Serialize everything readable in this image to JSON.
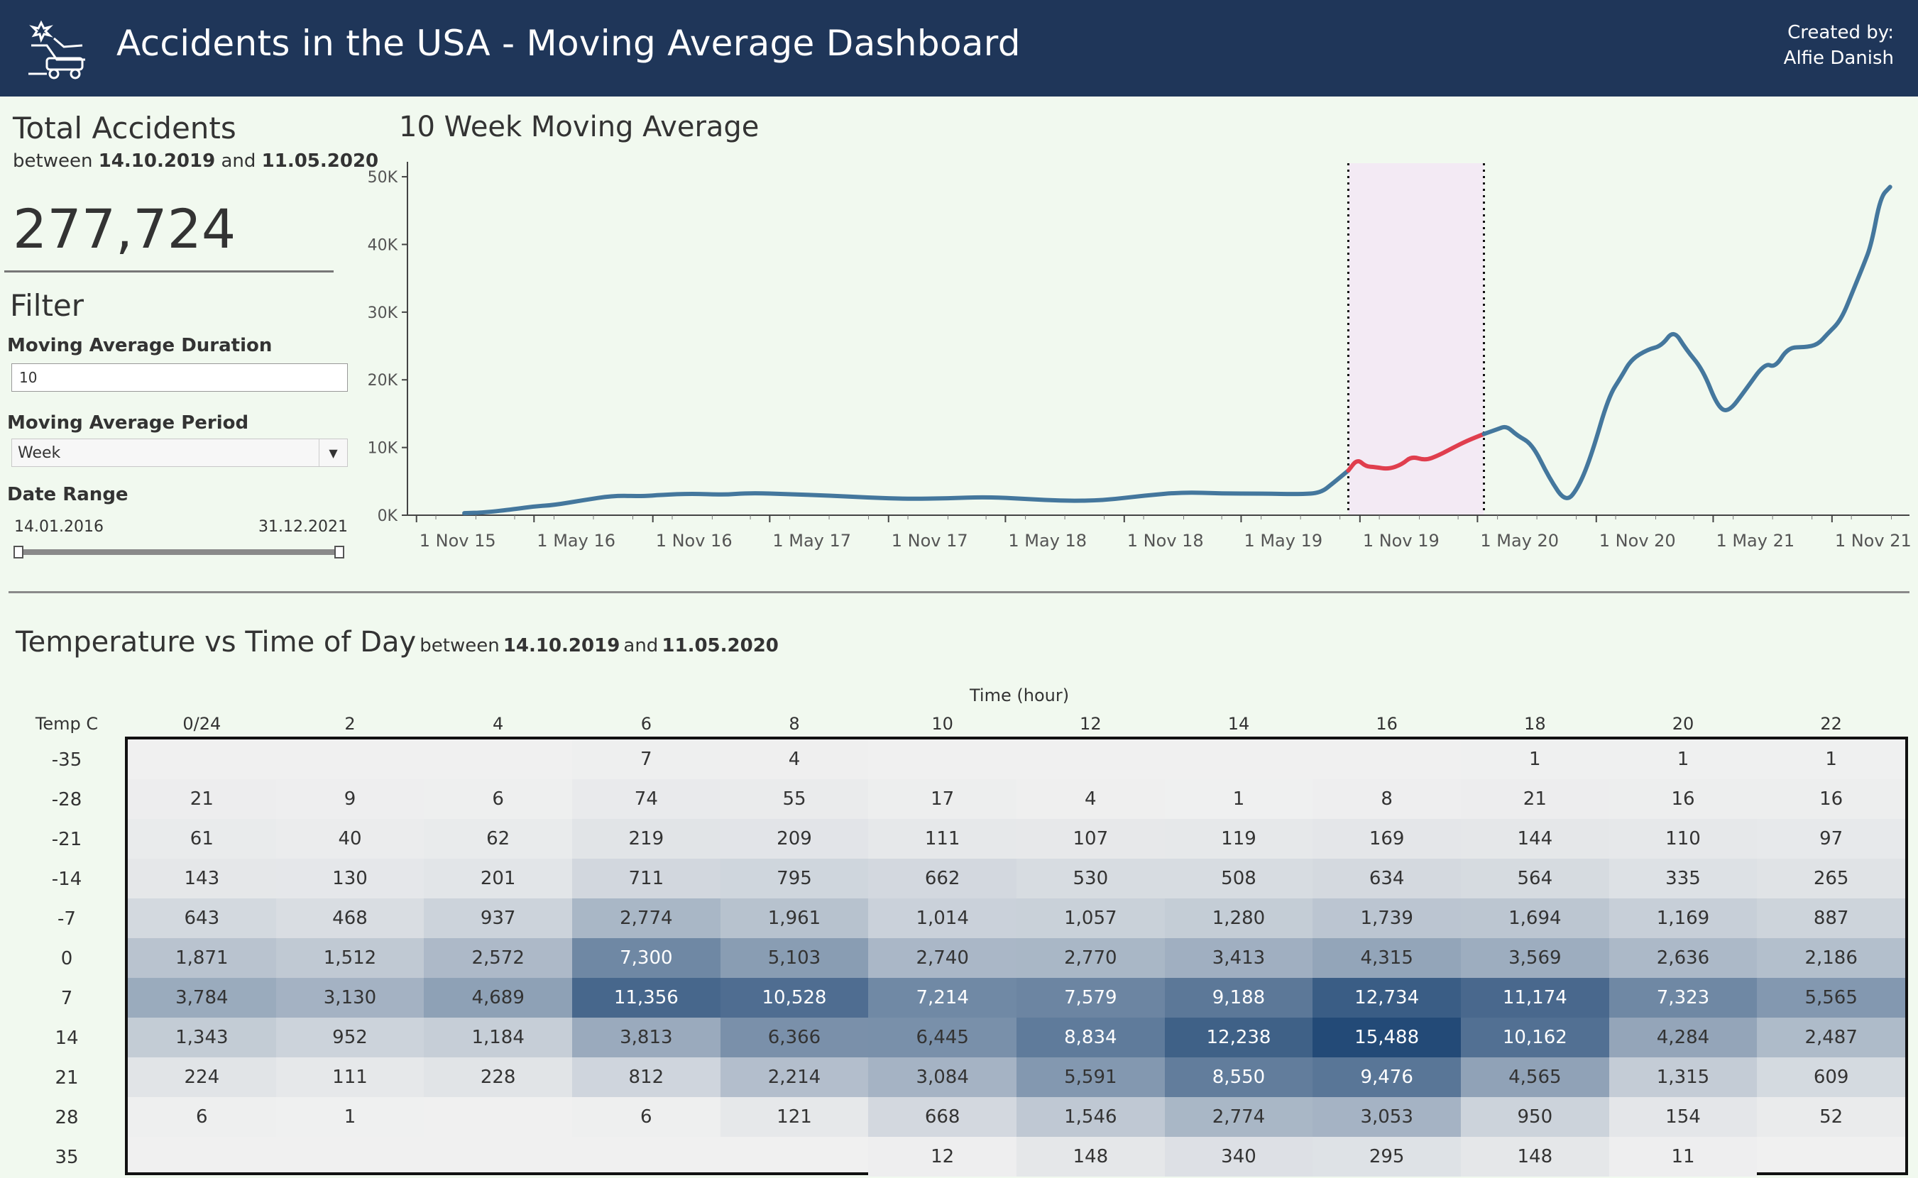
{
  "header": {
    "title": "Accidents in the USA - Moving Average Dashboard",
    "credit_line1": "Created by:",
    "credit_line2": "Alfie Danish",
    "background": "#1f3659"
  },
  "kpi": {
    "title": "Total Accidents",
    "between_word": "between",
    "start": "14.10.2019",
    "and_word": "and",
    "end": "11.05.2020",
    "value": "277,724"
  },
  "filter": {
    "title": "Filter",
    "duration_label": "Moving Average Duration",
    "duration_value": "10",
    "period_label": "Moving Average Period",
    "period_value": "Week",
    "range_label": "Date Range",
    "range_start": "14.01.2016",
    "range_end": "31.12.2021"
  },
  "chart_data": {
    "type": "line",
    "title": "10 Week Moving Average",
    "y_ticks": [
      "0K",
      "10K",
      "20K",
      "30K",
      "40K",
      "50K"
    ],
    "ylim": [
      0,
      52000
    ],
    "x_ticks": [
      {
        "label": "1 Nov 15",
        "date": "2015-11-01"
      },
      {
        "label": "1 May 16",
        "date": "2016-05-01"
      },
      {
        "label": "1 Nov 16",
        "date": "2016-11-01"
      },
      {
        "label": "1 May 17",
        "date": "2017-05-01"
      },
      {
        "label": "1 Nov 17",
        "date": "2017-11-01"
      },
      {
        "label": "1 May 18",
        "date": "2018-05-01"
      },
      {
        "label": "1 Nov 18",
        "date": "2018-11-01"
      },
      {
        "label": "1 May 19",
        "date": "2019-05-01"
      },
      {
        "label": "1 Nov 19",
        "date": "2019-11-01"
      },
      {
        "label": "1 May 20",
        "date": "2020-05-01"
      },
      {
        "label": "1 Nov 20",
        "date": "2020-11-01"
      },
      {
        "label": "1 May 21",
        "date": "2021-05-01"
      },
      {
        "label": "1 Nov 21",
        "date": "2021-11-01"
      }
    ],
    "xlim": [
      "2015-10-18",
      "2022-03-01"
    ],
    "highlight": {
      "start": "2019-10-14",
      "end": "2020-05-11",
      "color": "#f3eaf4"
    },
    "series": [
      {
        "color": "#44779d",
        "points": [
          [
            "2016-01-14",
            300
          ],
          [
            "2016-02-14",
            400
          ],
          [
            "2016-04-01",
            900
          ],
          [
            "2016-05-01",
            1300
          ],
          [
            "2016-06-01",
            1500
          ],
          [
            "2016-07-15",
            2200
          ],
          [
            "2016-09-01",
            2900
          ],
          [
            "2016-10-15",
            2800
          ],
          [
            "2016-11-15",
            3000
          ],
          [
            "2017-01-01",
            3200
          ],
          [
            "2017-02-15",
            3000
          ],
          [
            "2017-04-01",
            3300
          ],
          [
            "2017-06-01",
            3100
          ],
          [
            "2017-08-01",
            2900
          ],
          [
            "2017-10-01",
            2600
          ],
          [
            "2017-12-01",
            2400
          ],
          [
            "2018-02-01",
            2500
          ],
          [
            "2018-04-01",
            2700
          ],
          [
            "2018-06-01",
            2400
          ],
          [
            "2018-08-01",
            2100
          ],
          [
            "2018-10-01",
            2200
          ],
          [
            "2018-12-01",
            2900
          ],
          [
            "2019-02-01",
            3400
          ],
          [
            "2019-04-01",
            3200
          ],
          [
            "2019-06-01",
            3200
          ],
          [
            "2019-08-01",
            3100
          ],
          [
            "2019-09-01",
            3300
          ],
          [
            "2019-09-20",
            4700
          ],
          [
            "2019-10-14",
            6600
          ]
        ]
      },
      {
        "color": "#e03e4e",
        "points": [
          [
            "2019-10-14",
            6600
          ],
          [
            "2019-10-28",
            8300
          ],
          [
            "2019-11-10",
            7200
          ],
          [
            "2019-11-25",
            7100
          ],
          [
            "2019-12-15",
            6800
          ],
          [
            "2020-01-05",
            7500
          ],
          [
            "2020-01-20",
            8700
          ],
          [
            "2020-02-10",
            8100
          ],
          [
            "2020-03-01",
            8800
          ],
          [
            "2020-03-25",
            10000
          ],
          [
            "2020-04-15",
            11000
          ],
          [
            "2020-05-11",
            12000
          ]
        ]
      },
      {
        "color": "#44779d",
        "points": [
          [
            "2020-05-11",
            12000
          ],
          [
            "2020-06-01",
            12700
          ],
          [
            "2020-06-15",
            13200
          ],
          [
            "2020-07-01",
            11800
          ],
          [
            "2020-07-25",
            10500
          ],
          [
            "2020-08-20",
            5500
          ],
          [
            "2020-09-15",
            1800
          ],
          [
            "2020-10-05",
            4200
          ],
          [
            "2020-10-25",
            9000
          ],
          [
            "2020-11-20",
            17500
          ],
          [
            "2020-12-10",
            20500
          ],
          [
            "2020-12-25",
            23000
          ],
          [
            "2021-01-20",
            24500
          ],
          [
            "2021-02-10",
            25000
          ],
          [
            "2021-03-01",
            27400
          ],
          [
            "2021-03-20",
            24500
          ],
          [
            "2021-04-15",
            21500
          ],
          [
            "2021-05-08",
            16000
          ],
          [
            "2021-05-25",
            15200
          ],
          [
            "2021-06-20",
            18500
          ],
          [
            "2021-07-20",
            22500
          ],
          [
            "2021-08-05",
            21800
          ],
          [
            "2021-08-25",
            24800
          ],
          [
            "2021-09-20",
            24800
          ],
          [
            "2021-10-10",
            25200
          ],
          [
            "2021-10-25",
            26800
          ],
          [
            "2021-11-15",
            28800
          ],
          [
            "2021-12-05",
            33500
          ],
          [
            "2021-12-20",
            37000
          ],
          [
            "2022-01-01",
            40000
          ],
          [
            "2022-01-15",
            47000
          ],
          [
            "2022-01-30",
            48500
          ]
        ]
      }
    ]
  },
  "heatmap": {
    "title": "Temperature vs Time of Day",
    "between_word": "between",
    "start": "14.10.2019",
    "and_word": "and",
    "end": "11.05.2020",
    "x_title": "Time (hour)",
    "row_header": "Temp C",
    "columns": [
      "0/24",
      "2",
      "4",
      "6",
      "8",
      "10",
      "12",
      "14",
      "16",
      "18",
      "20",
      "22"
    ],
    "rows": [
      {
        "label": "-35",
        "values": [
          null,
          null,
          null,
          7,
          4,
          null,
          null,
          null,
          null,
          1,
          1,
          1
        ]
      },
      {
        "label": "-28",
        "values": [
          21,
          9,
          6,
          74,
          55,
          17,
          4,
          1,
          8,
          21,
          16,
          16
        ]
      },
      {
        "label": "-21",
        "values": [
          61,
          40,
          62,
          219,
          209,
          111,
          107,
          119,
          169,
          144,
          110,
          97
        ]
      },
      {
        "label": "-14",
        "values": [
          143,
          130,
          201,
          711,
          795,
          662,
          530,
          508,
          634,
          564,
          335,
          265
        ]
      },
      {
        "label": "-7",
        "values": [
          643,
          468,
          937,
          2774,
          1961,
          1014,
          1057,
          1280,
          1739,
          1694,
          1169,
          887
        ]
      },
      {
        "label": "0",
        "values": [
          1871,
          1512,
          2572,
          7300,
          5103,
          2740,
          2770,
          3413,
          4315,
          3569,
          2636,
          2186
        ]
      },
      {
        "label": "7",
        "values": [
          3784,
          3130,
          4689,
          11356,
          10528,
          7214,
          7579,
          9188,
          12734,
          11174,
          7323,
          5565
        ]
      },
      {
        "label": "14",
        "values": [
          1343,
          952,
          1184,
          3813,
          6366,
          6445,
          8834,
          12238,
          15488,
          10162,
          4284,
          2487
        ]
      },
      {
        "label": "21",
        "values": [
          224,
          111,
          228,
          812,
          2214,
          3084,
          5591,
          8550,
          9476,
          4565,
          1315,
          609
        ]
      },
      {
        "label": "28",
        "values": [
          6,
          1,
          null,
          6,
          121,
          668,
          1546,
          2774,
          3053,
          950,
          154,
          52
        ]
      },
      {
        "label": "35",
        "values": [
          null,
          null,
          null,
          null,
          null,
          12,
          148,
          340,
          295,
          148,
          11,
          null
        ]
      }
    ],
    "color_low": "#f0f0f0",
    "color_high": "#234a77"
  }
}
